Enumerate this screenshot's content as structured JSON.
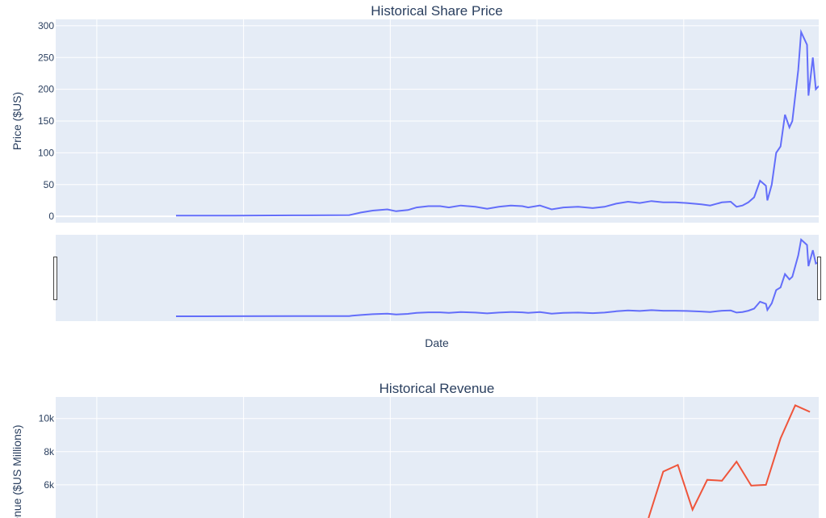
{
  "chart_data": [
    {
      "type": "line",
      "title": "Historical Share Price",
      "xlabel": "Date",
      "ylabel": "Price ($US)",
      "y_ticks": [
        0,
        50,
        100,
        150,
        200,
        250,
        300
      ],
      "y_tick_labels": [
        "0",
        "50",
        "100",
        "150",
        "200",
        "250",
        "300"
      ],
      "ylim": [
        -10,
        310
      ],
      "x_year_range": [
        1996.9,
        2022.9
      ],
      "rangeslider": true,
      "line_color": "#636efa",
      "series": [
        {
          "x": [
            2001.0,
            2003.0,
            2005.0,
            2006.9,
            2007.0,
            2007.3,
            2007.7,
            2008.2,
            2008.5,
            2008.9,
            2009.2,
            2009.6,
            2010.0,
            2010.3,
            2010.7,
            2011.2,
            2011.6,
            2012.0,
            2012.4,
            2012.8,
            2013.0,
            2013.4,
            2013.8,
            2014.2,
            2014.7,
            2015.2,
            2015.6,
            2016.0,
            2016.4,
            2016.8,
            2017.2,
            2017.6,
            2018.0,
            2018.4,
            2018.9,
            2019.2,
            2019.6,
            2019.9,
            2020.1,
            2020.3,
            2020.5,
            2020.7,
            2020.9,
            2021.1,
            2021.15,
            2021.3,
            2021.45,
            2021.6,
            2021.75,
            2021.9,
            2022.0,
            2022.2,
            2022.3,
            2022.5,
            2022.55,
            2022.7,
            2022.8,
            2022.9
          ],
          "y": [
            1,
            1.2,
            1.5,
            2,
            3,
            6,
            9,
            11,
            8,
            10,
            14,
            16,
            16,
            14,
            17,
            15,
            12,
            15,
            17,
            16,
            14,
            17,
            11,
            14,
            15,
            13,
            15,
            20,
            23,
            21,
            24,
            22,
            22,
            21,
            19,
            17,
            22,
            23,
            15,
            17,
            22,
            30,
            56,
            48,
            25,
            50,
            100,
            110,
            160,
            140,
            150,
            230,
            290,
            270,
            190,
            250,
            200,
            205
          ]
        }
      ]
    },
    {
      "type": "line",
      "title": "Historical Revenue",
      "ylabel": "Revenue ($US Millions)",
      "y_ticks": [
        6000,
        8000,
        10000
      ],
      "y_tick_labels": [
        "6k",
        "8k",
        "10k"
      ],
      "ylim": [
        4000,
        11300
      ],
      "x_year_range": [
        1996.9,
        2022.9
      ],
      "line_color": "#ef553b",
      "series": [
        {
          "x": [
            2017.1,
            2017.6,
            2018.1,
            2018.6,
            2019.1,
            2019.6,
            2020.1,
            2020.6,
            2021.1,
            2021.6,
            2022.1,
            2022.6
          ],
          "y": [
            4000,
            6800,
            7200,
            4500,
            6300,
            6250,
            7400,
            5950,
            6000,
            8800,
            10800,
            10400
          ]
        }
      ]
    }
  ]
}
